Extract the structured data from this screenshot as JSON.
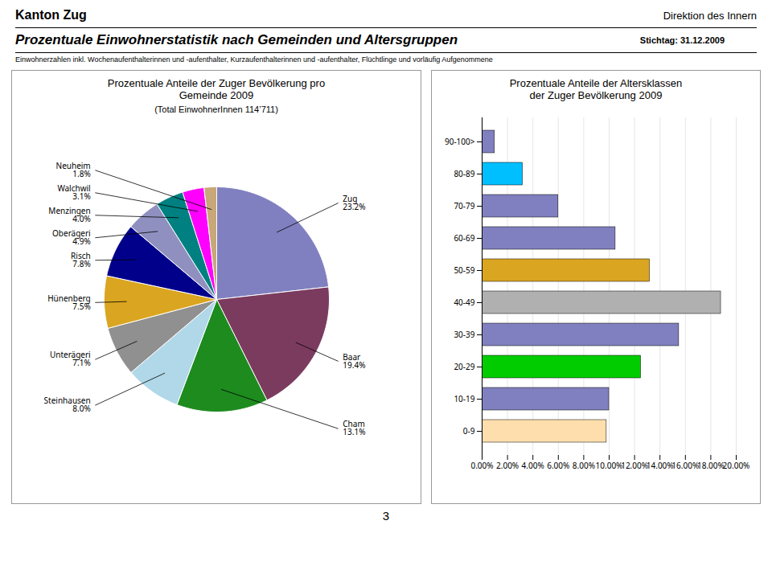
{
  "title": "Prozentuale Einwohnerstatistik nach Gemeinden und Altersgruppen",
  "subtitle": "Einwohnerzahlen inkl. Wochenaufenthalterinnen und -aufenthalter, Kurzaufenthalterinnen und -aufenthalter, Flüchtlinge und vorläufig Aufgenommene",
  "annotations": [
    "Kanton Zug",
    "Direktion des Innern",
    "Stichtag:  31.12.2009",
    "3"
  ],
  "chart_data": [
    {
      "type": "pie",
      "title": "Prozentuale Anteile der Zuger Bevölkerung pro\nGemeinde 2009",
      "subtitle": "(Total  EinwohnerInnen 114’711)",
      "categories": [
        "Zug",
        "Baar",
        "Cham",
        "Steinhausen",
        "Unterägeri",
        "Hünenberg",
        "Risch",
        "Oberägeri",
        "Menzingen",
        "Walchwil",
        "Neuheim"
      ],
      "values": [
        23.2,
        19.4,
        13.1,
        8.0,
        7.1,
        7.5,
        7.8,
        4.9,
        4.0,
        3.1,
        1.8
      ],
      "value_labels": [
        "23.2%",
        "19.4%",
        "13.1%",
        "8.0%",
        "7.1%",
        "7.5%",
        "7.8%",
        "4.9%",
        "4.0%",
        "3.1%",
        "1.8%"
      ],
      "colors": [
        "#8080C0",
        "#7B3B5E",
        "#1E8B1E",
        "#B0D8E8",
        "#909090",
        "#DAA520",
        "#00008B",
        "#9090C0",
        "#008080",
        "#FF00FF",
        "#C8A878"
      ],
      "data_labels": true
    },
    {
      "type": "bar",
      "orientation": "horizontal",
      "title": "Prozentuale Anteile der Altersklassen\nder Zuger Bevölkerung 2009",
      "categories": [
        "90-100>",
        "80-89",
        "70-79",
        "60-69",
        "50-59",
        "40-49",
        "30-39",
        "20-29",
        "10-19",
        "0-9"
      ],
      "values": [
        1.0,
        3.2,
        6.0,
        10.5,
        13.2,
        18.8,
        15.5,
        12.5,
        10.0,
        9.8
      ],
      "colors": [
        "#8080C0",
        "#00BFFF",
        "#8080C0",
        "#8080C0",
        "#DAA520",
        "#B0B0B0",
        "#8080C0",
        "#00CC00",
        "#8080C0",
        "#FFDEAD"
      ],
      "xlim": [
        0,
        20
      ],
      "xticks": [
        {
          "value": 0,
          "label": "0.00%"
        },
        {
          "value": 2,
          "label": "2.00%"
        },
        {
          "value": 4,
          "label": "4.00%"
        },
        {
          "value": 6,
          "label": "6.00%"
        },
        {
          "value": 8,
          "label": "8.00%"
        },
        {
          "value": 10,
          "label": "10.00%"
        },
        {
          "value": 12,
          "label": "12.00%"
        },
        {
          "value": 14,
          "label": "14.00%"
        },
        {
          "value": 16,
          "label": "16.00%"
        },
        {
          "value": 18,
          "label": "18.00%"
        },
        {
          "value": 20,
          "label": "20.00%"
        }
      ],
      "grid": true
    }
  ]
}
